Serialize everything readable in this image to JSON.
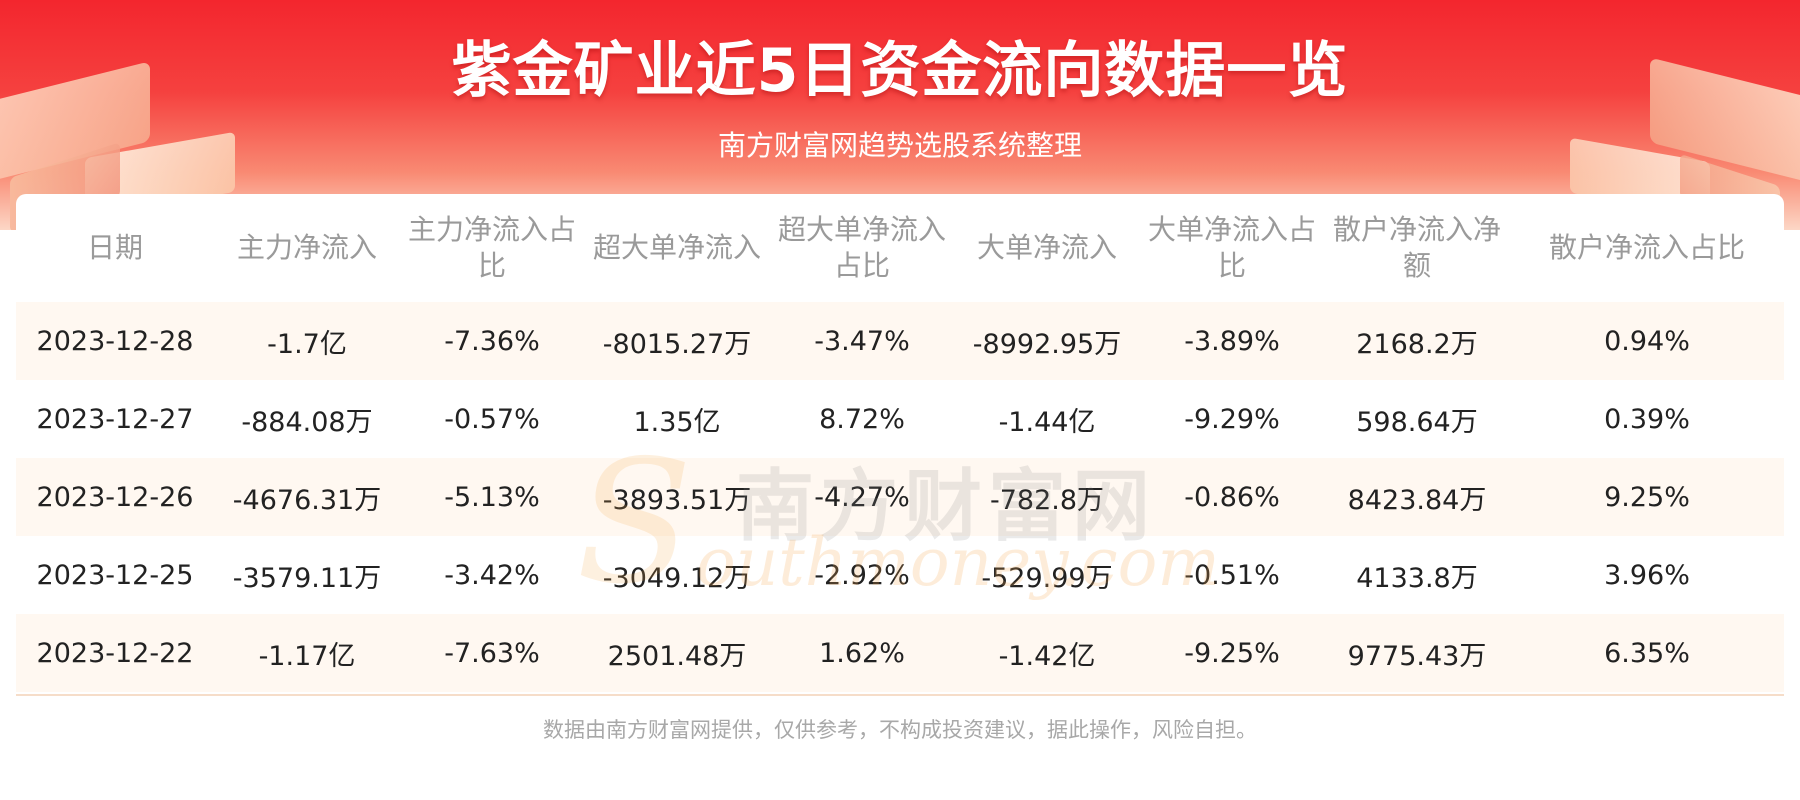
{
  "header": {
    "title": "紫金矿业近5日资金流向数据一览",
    "subtitle": "南方财富网趋势选股系统整理"
  },
  "watermark": {
    "cn": "南方财富网",
    "en": "outhmoney.com",
    "initial": "S"
  },
  "footer": {
    "disclaimer": "数据由南方财富网提供，仅供参考，不构成投资建议，据此操作，风险自担。"
  },
  "colors": {
    "header_red": "#f3262e",
    "row_highlight": "#fff8f1",
    "header_text_gray": "#9a9a9a"
  },
  "chart_data": {
    "type": "table",
    "title": "紫金矿业近5日资金流向数据一览",
    "columns": [
      "日期",
      "主力净流入",
      "主力净流入占比",
      "超大单净流入",
      "超大单净流入占比",
      "大单净流入",
      "大单净流入占比",
      "散户净流入净额",
      "散户净流入占比"
    ],
    "rows": [
      [
        "2023-12-28",
        "-1.7亿",
        "-7.36%",
        "-8015.27万",
        "-3.47%",
        "-8992.95万",
        "-3.89%",
        "2168.2万",
        "0.94%"
      ],
      [
        "2023-12-27",
        "-884.08万",
        "-0.57%",
        "1.35亿",
        "8.72%",
        "-1.44亿",
        "-9.29%",
        "598.64万",
        "0.39%"
      ],
      [
        "2023-12-26",
        "-4676.31万",
        "-5.13%",
        "-3893.51万",
        "-4.27%",
        "-782.8万",
        "-0.86%",
        "8423.84万",
        "9.25%"
      ],
      [
        "2023-12-25",
        "-3579.11万",
        "-3.42%",
        "-3049.12万",
        "-2.92%",
        "-529.99万",
        "-0.51%",
        "4133.8万",
        "3.96%"
      ],
      [
        "2023-12-22",
        "-1.17亿",
        "-7.63%",
        "2501.48万",
        "1.62%",
        "-1.42亿",
        "-9.25%",
        "9775.43万",
        "6.35%"
      ]
    ]
  }
}
